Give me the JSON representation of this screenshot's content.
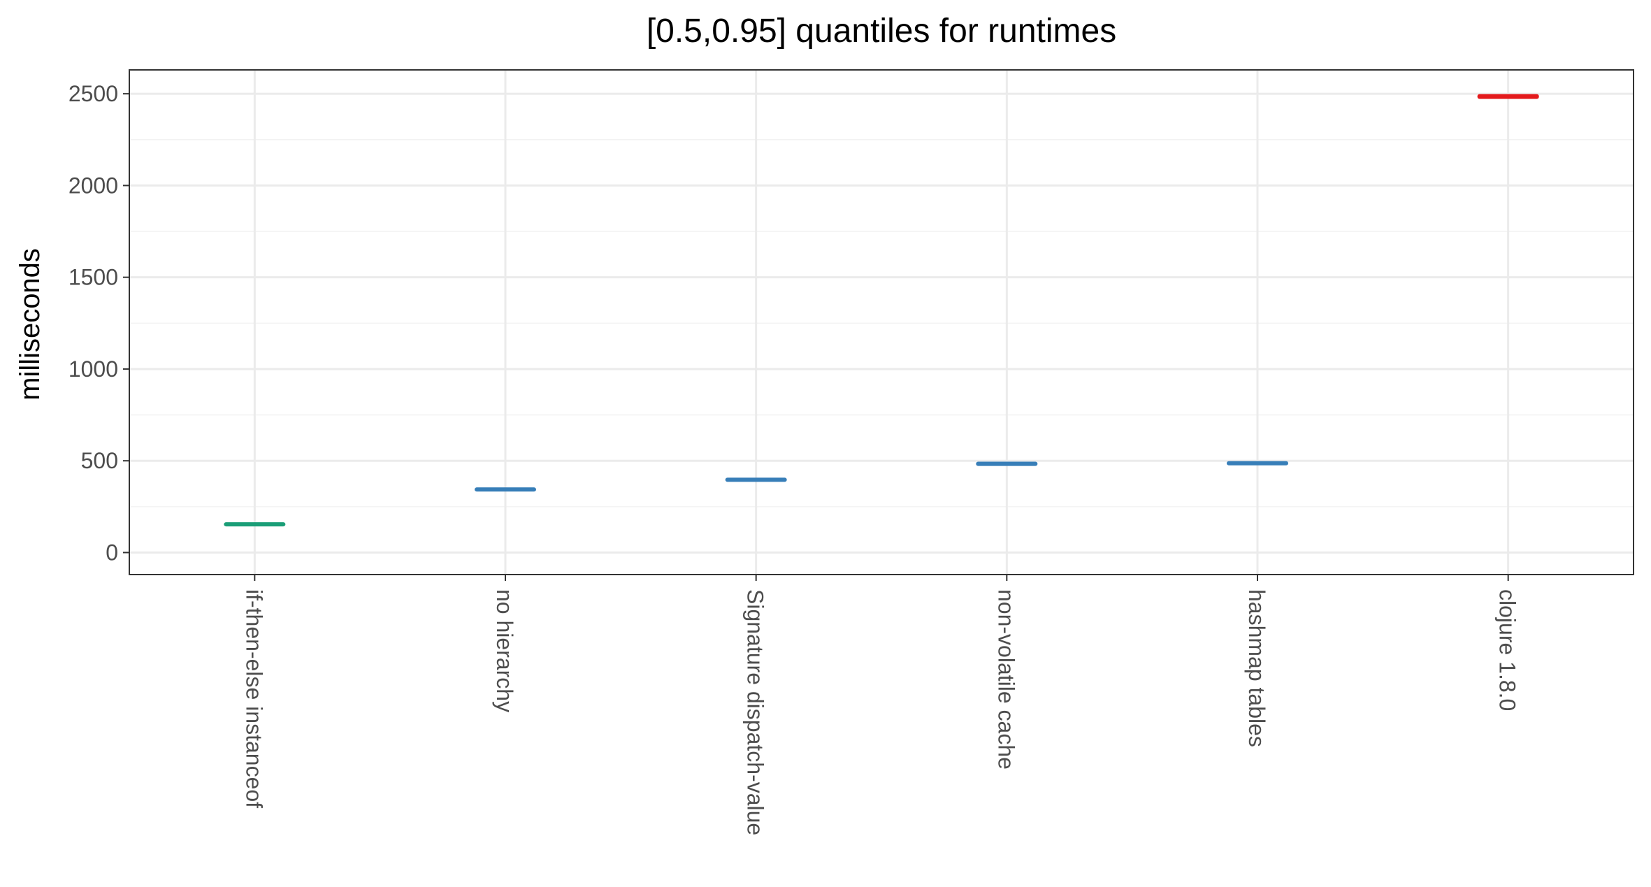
{
  "chart_data": {
    "type": "errorbar",
    "title": "[0.5,0.95] quantiles for runtimes",
    "xlabel": "",
    "ylabel": "milliseconds",
    "ylim": [
      -120,
      2630
    ],
    "y_ticks": [
      0,
      500,
      1000,
      1500,
      2000,
      2500
    ],
    "grid": true,
    "legend": "none",
    "categories": [
      "if-then-else instanceof",
      "no hierarchy",
      "Signature dispatch-value",
      "non-volatile cache",
      "hashmap tables",
      "clojure 1.8.0"
    ],
    "ranges": [
      {
        "low": 146,
        "high": 162,
        "color": "#1b9e77"
      },
      {
        "low": 335,
        "high": 352,
        "color": "#377eb8"
      },
      {
        "low": 388,
        "high": 405,
        "color": "#377eb8"
      },
      {
        "low": 472,
        "high": 495,
        "color": "#377eb8"
      },
      {
        "low": 478,
        "high": 495,
        "color": "#377eb8"
      },
      {
        "low": 2472,
        "high": 2498,
        "color": "#e41a1c"
      }
    ]
  }
}
